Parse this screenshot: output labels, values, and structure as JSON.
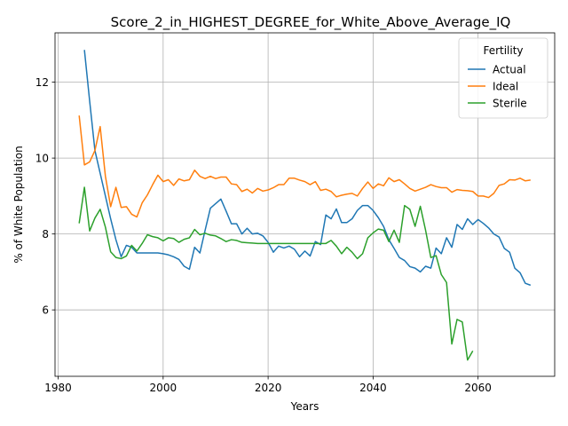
{
  "chart_data": {
    "type": "line",
    "title": "Score_2_in_HIGHEST_DEGREE_for_White_Above_Average_IQ",
    "xlabel": "Years",
    "ylabel": "% of White Population",
    "xlim": [
      1979.4,
      2074.6
    ],
    "ylim": [
      4.25,
      13.3
    ],
    "x_ticks": [
      1980,
      2000,
      2020,
      2040,
      2060
    ],
    "y_ticks": [
      6,
      8,
      10,
      12
    ],
    "grid": true,
    "legend": {
      "title": "Fertility",
      "placement": "top-right"
    },
    "series": [
      {
        "name": "Actual",
        "color": "#1f77b4",
        "points": [
          [
            1985,
            12.85
          ],
          [
            1986,
            11.5
          ],
          [
            1987,
            10.2
          ],
          [
            1988,
            9.6
          ],
          [
            1989,
            9.0
          ],
          [
            1990,
            8.4
          ],
          [
            1991,
            7.85
          ],
          [
            1992,
            7.4
          ],
          [
            1993,
            7.7
          ],
          [
            1994,
            7.65
          ],
          [
            1995,
            7.5
          ],
          [
            1996,
            7.5
          ],
          [
            1997,
            7.5
          ],
          [
            1998,
            7.5
          ],
          [
            1999,
            7.5
          ],
          [
            2000,
            7.48
          ],
          [
            2001,
            7.45
          ],
          [
            2002,
            7.4
          ],
          [
            2003,
            7.33
          ],
          [
            2004,
            7.15
          ],
          [
            2005,
            7.07
          ],
          [
            2006,
            7.65
          ],
          [
            2007,
            7.5
          ],
          [
            2008,
            8.1
          ],
          [
            2009,
            8.68
          ],
          [
            2010,
            8.8
          ],
          [
            2011,
            8.92
          ],
          [
            2012,
            8.6
          ],
          [
            2013,
            8.27
          ],
          [
            2014,
            8.27
          ],
          [
            2015,
            8.0
          ],
          [
            2016,
            8.15
          ],
          [
            2017,
            8.0
          ],
          [
            2018,
            8.02
          ],
          [
            2019,
            7.95
          ],
          [
            2020,
            7.78
          ],
          [
            2021,
            7.52
          ],
          [
            2022,
            7.68
          ],
          [
            2023,
            7.63
          ],
          [
            2024,
            7.68
          ],
          [
            2025,
            7.6
          ],
          [
            2026,
            7.4
          ],
          [
            2027,
            7.55
          ],
          [
            2028,
            7.42
          ],
          [
            2029,
            7.8
          ],
          [
            2030,
            7.72
          ],
          [
            2031,
            8.5
          ],
          [
            2032,
            8.4
          ],
          [
            2033,
            8.66
          ],
          [
            2034,
            8.3
          ],
          [
            2035,
            8.3
          ],
          [
            2036,
            8.4
          ],
          [
            2037,
            8.62
          ],
          [
            2038,
            8.75
          ],
          [
            2039,
            8.75
          ],
          [
            2040,
            8.62
          ],
          [
            2041,
            8.43
          ],
          [
            2042,
            8.2
          ],
          [
            2043,
            7.85
          ],
          [
            2044,
            7.62
          ],
          [
            2045,
            7.38
          ],
          [
            2046,
            7.3
          ],
          [
            2047,
            7.14
          ],
          [
            2048,
            7.1
          ],
          [
            2049,
            7.0
          ],
          [
            2050,
            7.15
          ],
          [
            2051,
            7.1
          ],
          [
            2052,
            7.63
          ],
          [
            2053,
            7.48
          ],
          [
            2054,
            7.9
          ],
          [
            2055,
            7.65
          ],
          [
            2056,
            8.25
          ],
          [
            2057,
            8.12
          ],
          [
            2058,
            8.4
          ],
          [
            2059,
            8.25
          ],
          [
            2060,
            8.38
          ],
          [
            2061,
            8.28
          ],
          [
            2062,
            8.16
          ],
          [
            2063,
            8.0
          ],
          [
            2064,
            7.92
          ],
          [
            2065,
            7.62
          ],
          [
            2066,
            7.52
          ],
          [
            2067,
            7.1
          ],
          [
            2068,
            6.98
          ],
          [
            2069,
            6.7
          ],
          [
            2070,
            6.65
          ]
        ]
      },
      {
        "name": "Ideal",
        "color": "#ff7f0e",
        "points": [
          [
            1984,
            11.12
          ],
          [
            1985,
            9.82
          ],
          [
            1986,
            9.9
          ],
          [
            1987,
            10.2
          ],
          [
            1988,
            10.83
          ],
          [
            1989,
            9.52
          ],
          [
            1990,
            8.72
          ],
          [
            1991,
            9.23
          ],
          [
            1992,
            8.7
          ],
          [
            1993,
            8.72
          ],
          [
            1994,
            8.52
          ],
          [
            1995,
            8.45
          ],
          [
            1996,
            8.82
          ],
          [
            1997,
            9.03
          ],
          [
            1998,
            9.3
          ],
          [
            1999,
            9.55
          ],
          [
            2000,
            9.38
          ],
          [
            2001,
            9.43
          ],
          [
            2002,
            9.28
          ],
          [
            2003,
            9.45
          ],
          [
            2004,
            9.4
          ],
          [
            2005,
            9.43
          ],
          [
            2006,
            9.68
          ],
          [
            2007,
            9.52
          ],
          [
            2008,
            9.46
          ],
          [
            2009,
            9.52
          ],
          [
            2010,
            9.46
          ],
          [
            2011,
            9.5
          ],
          [
            2012,
            9.5
          ],
          [
            2013,
            9.32
          ],
          [
            2014,
            9.3
          ],
          [
            2015,
            9.12
          ],
          [
            2016,
            9.18
          ],
          [
            2017,
            9.08
          ],
          [
            2018,
            9.2
          ],
          [
            2019,
            9.13
          ],
          [
            2020,
            9.16
          ],
          [
            2021,
            9.22
          ],
          [
            2022,
            9.3
          ],
          [
            2023,
            9.3
          ],
          [
            2024,
            9.47
          ],
          [
            2025,
            9.47
          ],
          [
            2026,
            9.42
          ],
          [
            2027,
            9.38
          ],
          [
            2028,
            9.3
          ],
          [
            2029,
            9.38
          ],
          [
            2030,
            9.15
          ],
          [
            2031,
            9.18
          ],
          [
            2032,
            9.12
          ],
          [
            2033,
            8.98
          ],
          [
            2034,
            9.02
          ],
          [
            2035,
            9.05
          ],
          [
            2036,
            9.07
          ],
          [
            2037,
            9.0
          ],
          [
            2038,
            9.2
          ],
          [
            2039,
            9.37
          ],
          [
            2040,
            9.2
          ],
          [
            2041,
            9.32
          ],
          [
            2042,
            9.27
          ],
          [
            2043,
            9.48
          ],
          [
            2044,
            9.38
          ],
          [
            2045,
            9.43
          ],
          [
            2046,
            9.32
          ],
          [
            2047,
            9.2
          ],
          [
            2048,
            9.13
          ],
          [
            2049,
            9.18
          ],
          [
            2050,
            9.23
          ],
          [
            2051,
            9.3
          ],
          [
            2052,
            9.25
          ],
          [
            2053,
            9.22
          ],
          [
            2054,
            9.22
          ],
          [
            2055,
            9.1
          ],
          [
            2056,
            9.17
          ],
          [
            2057,
            9.15
          ],
          [
            2058,
            9.14
          ],
          [
            2059,
            9.12
          ],
          [
            2060,
            9.0
          ],
          [
            2061,
            9.0
          ],
          [
            2062,
            8.96
          ],
          [
            2063,
            9.07
          ],
          [
            2064,
            9.28
          ],
          [
            2065,
            9.32
          ],
          [
            2066,
            9.43
          ],
          [
            2067,
            9.42
          ],
          [
            2068,
            9.47
          ],
          [
            2069,
            9.4
          ],
          [
            2070,
            9.42
          ]
        ]
      },
      {
        "name": "Sterile",
        "color": "#2ca02c",
        "points": [
          [
            1984,
            8.28
          ],
          [
            1985,
            9.23
          ],
          [
            1986,
            8.08
          ],
          [
            1987,
            8.42
          ],
          [
            1988,
            8.65
          ],
          [
            1989,
            8.18
          ],
          [
            1990,
            7.53
          ],
          [
            1991,
            7.38
          ],
          [
            1992,
            7.35
          ],
          [
            1993,
            7.42
          ],
          [
            1994,
            7.7
          ],
          [
            1995,
            7.55
          ],
          [
            1996,
            7.75
          ],
          [
            1997,
            7.98
          ],
          [
            1998,
            7.93
          ],
          [
            1999,
            7.9
          ],
          [
            2000,
            7.82
          ],
          [
            2001,
            7.9
          ],
          [
            2002,
            7.88
          ],
          [
            2003,
            7.78
          ],
          [
            2004,
            7.86
          ],
          [
            2005,
            7.9
          ],
          [
            2006,
            8.12
          ],
          [
            2007,
            7.98
          ],
          [
            2008,
            8.02
          ],
          [
            2009,
            7.97
          ],
          [
            2010,
            7.95
          ],
          [
            2011,
            7.88
          ],
          [
            2012,
            7.8
          ],
          [
            2013,
            7.85
          ],
          [
            2014,
            7.83
          ],
          [
            2015,
            7.78
          ],
          [
            2016,
            7.77
          ],
          [
            2017,
            7.76
          ],
          [
            2018,
            7.75
          ],
          [
            2019,
            7.75
          ],
          [
            2020,
            7.75
          ],
          [
            2021,
            7.75
          ],
          [
            2022,
            7.75
          ],
          [
            2023,
            7.75
          ],
          [
            2024,
            7.75
          ],
          [
            2025,
            7.75
          ],
          [
            2026,
            7.75
          ],
          [
            2027,
            7.75
          ],
          [
            2028,
            7.75
          ],
          [
            2029,
            7.75
          ],
          [
            2030,
            7.75
          ],
          [
            2031,
            7.75
          ],
          [
            2032,
            7.83
          ],
          [
            2033,
            7.68
          ],
          [
            2034,
            7.48
          ],
          [
            2035,
            7.65
          ],
          [
            2036,
            7.52
          ],
          [
            2037,
            7.35
          ],
          [
            2038,
            7.48
          ],
          [
            2039,
            7.9
          ],
          [
            2040,
            8.03
          ],
          [
            2041,
            8.13
          ],
          [
            2042,
            8.1
          ],
          [
            2043,
            7.8
          ],
          [
            2044,
            8.1
          ],
          [
            2045,
            7.78
          ],
          [
            2046,
            8.75
          ],
          [
            2047,
            8.65
          ],
          [
            2048,
            8.2
          ],
          [
            2049,
            8.73
          ],
          [
            2050,
            8.1
          ],
          [
            2051,
            7.38
          ],
          [
            2052,
            7.43
          ],
          [
            2053,
            6.93
          ],
          [
            2054,
            6.72
          ],
          [
            2055,
            5.1
          ],
          [
            2056,
            5.75
          ],
          [
            2057,
            5.68
          ],
          [
            2058,
            4.68
          ],
          [
            2059,
            4.92
          ]
        ]
      }
    ]
  }
}
